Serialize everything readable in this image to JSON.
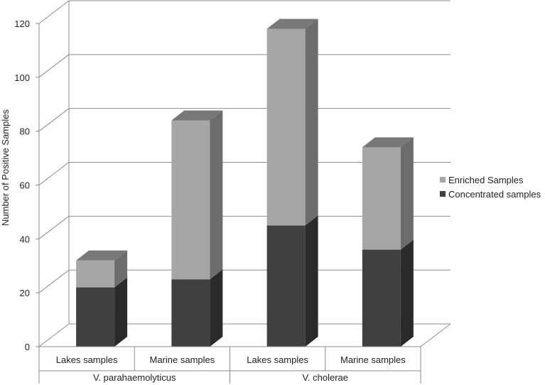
{
  "chart_data": {
    "type": "bar",
    "stacked": true,
    "style": "3d-column",
    "ylabel": "Number of  Positive Samples",
    "ylim": [
      0,
      120
    ],
    "yticks": [
      0,
      20,
      40,
      60,
      80,
      100,
      120
    ],
    "categories": [
      "Lakes samples",
      "Marine samples",
      "Lakes samples",
      "Marine samples"
    ],
    "groups": [
      {
        "label": "V. parahaemolyticus",
        "categories": [
          0,
          1
        ]
      },
      {
        "label": "V. cholerae",
        "categories": [
          2,
          3
        ]
      }
    ],
    "series": [
      {
        "name": "Concentrated samples",
        "values": [
          22,
          25,
          45,
          36
        ],
        "color": "#404040"
      },
      {
        "name": "Enriched Samples",
        "values": [
          10,
          59,
          73,
          38
        ],
        "color": "#a6a6a6"
      }
    ],
    "legend_order": [
      "Enriched Samples",
      "Concentrated samples"
    ],
    "legend_position": "right",
    "grid": true
  }
}
